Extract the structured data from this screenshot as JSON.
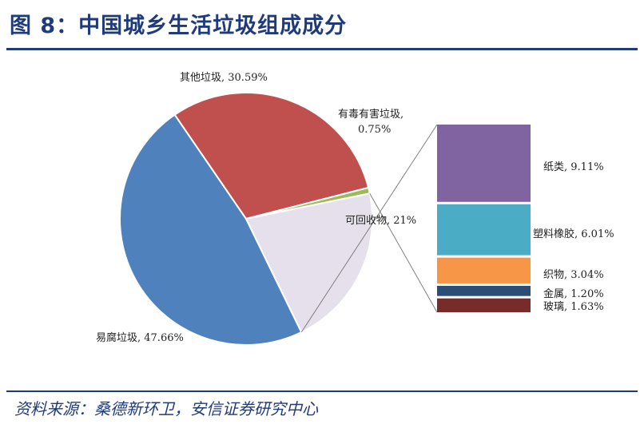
{
  "figure": {
    "title": "图 8：中国城乡生活垃圾组成成分",
    "source": "资料来源：桑德新环卫，安信证券研究中心"
  },
  "chart_data": {
    "type": "pie",
    "pie": {
      "slices": [
        {
          "label": "易腐垃圾, 47.66%",
          "value": 47.66,
          "color": "#4f81bd"
        },
        {
          "label": "其他垃圾, 30.59%",
          "value": 30.59,
          "color": "#c0504d"
        },
        {
          "label": "有毒有害垃圾,",
          "label2": "0.75%",
          "value": 0.75,
          "color": "#9bbb59"
        },
        {
          "label": "可回收物, 21%",
          "value": 21.0,
          "color": "#e5e0ec"
        }
      ]
    },
    "breakdown": {
      "type": "stacked-bar",
      "parent": "可回收物",
      "segments": [
        {
          "label": "纸类, 9.11%",
          "value": 9.11,
          "color": "#8064a2"
        },
        {
          "label": "塑料橡胶, 6.01%",
          "value": 6.01,
          "color": "#4bacc6"
        },
        {
          "label": "织物, 3.04%",
          "value": 3.04,
          "color": "#f79646"
        },
        {
          "label": "金属, 1.20%",
          "value": 1.2,
          "color": "#2c4d75"
        },
        {
          "label": "玻璃, 1.63%",
          "value": 1.63,
          "color": "#772c2a"
        }
      ]
    }
  }
}
